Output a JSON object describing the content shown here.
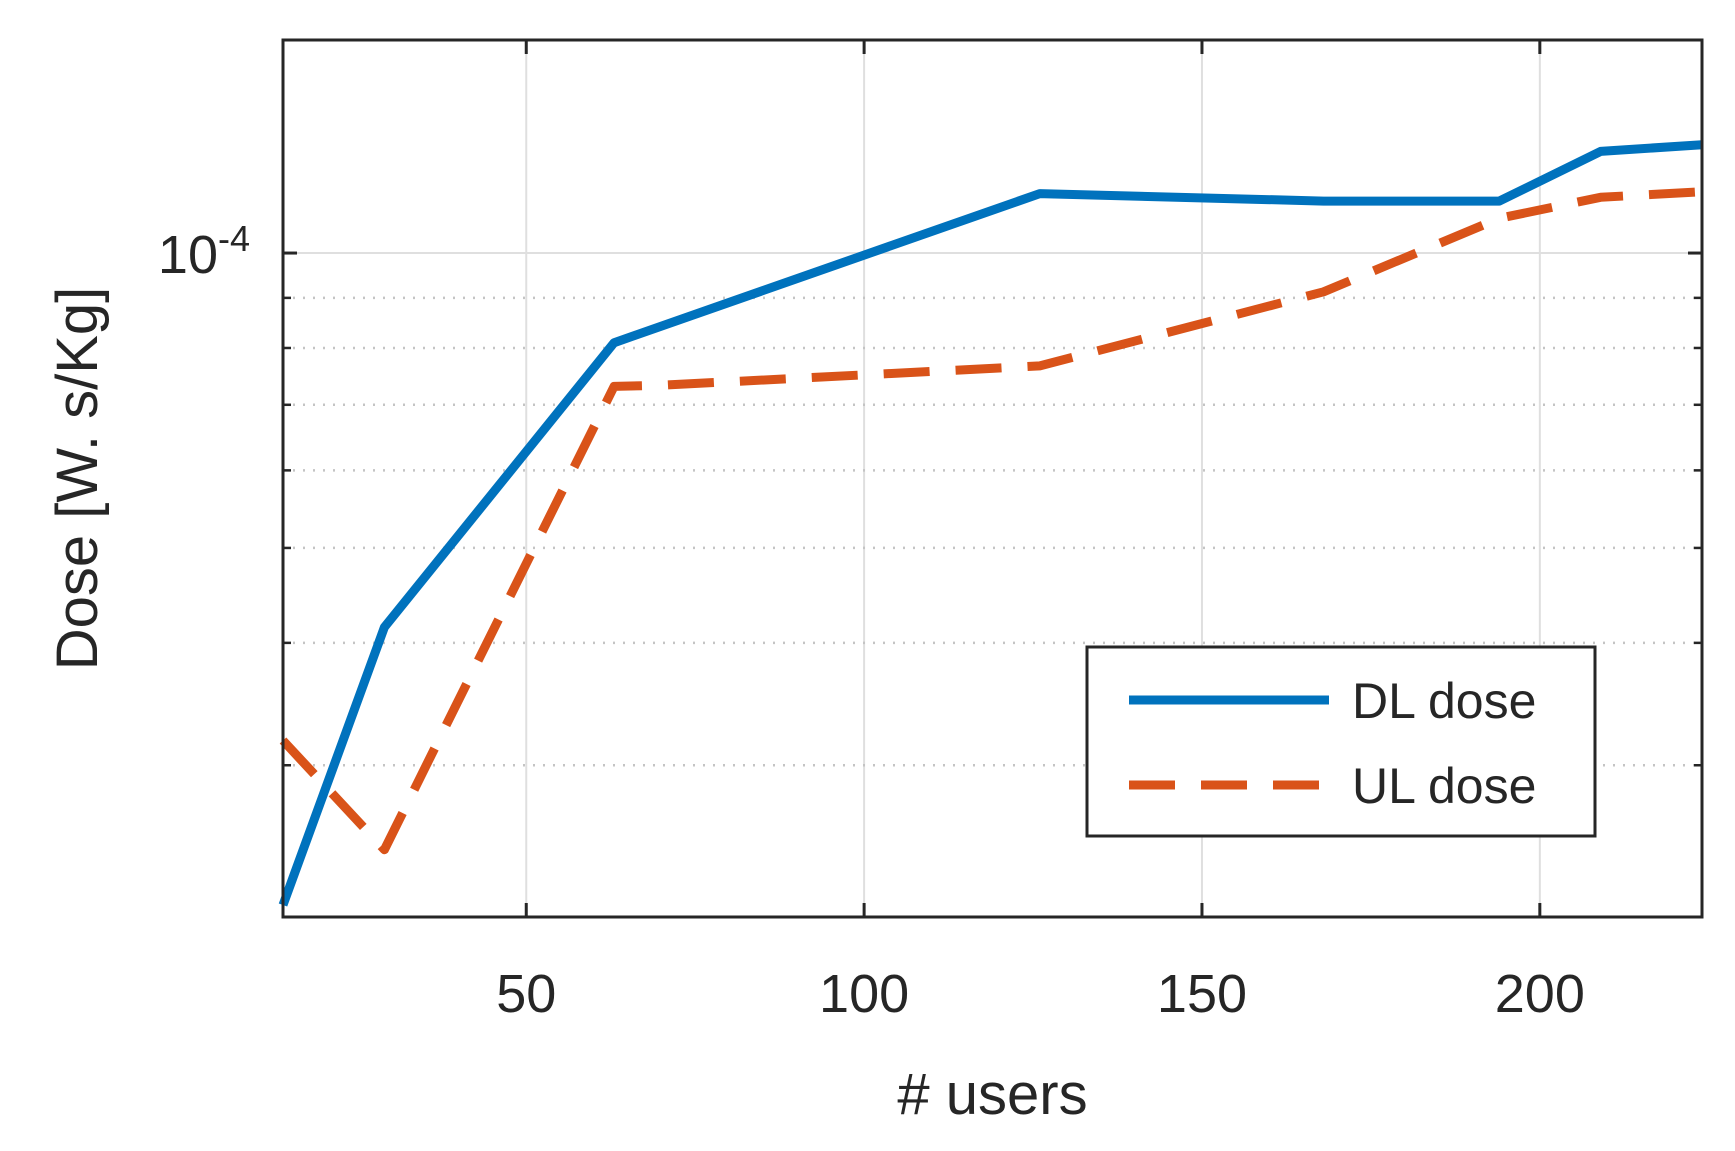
{
  "chart_data": {
    "type": "line",
    "title": "",
    "xlabel": "# users",
    "ylabel": "Dose [W. s/Kg]",
    "xlim": [
      14,
      224
    ],
    "xticks": [
      50,
      100,
      150,
      200
    ],
    "yscale": "log",
    "ylim": [
      2.1e-05,
      0.000165
    ],
    "yticks": [
      0.0001
    ],
    "ytick_labels": [
      {
        "base": "10",
        "exp": "-4"
      }
    ],
    "yminor_ticks": [
      3e-05,
      4e-05,
      5e-05,
      6e-05,
      7e-05,
      8e-05,
      9e-05
    ],
    "grid": {
      "major": true,
      "minor": "dotted"
    },
    "legend": {
      "placement": "bottom-right"
    },
    "series": [
      {
        "name": "DL dose",
        "color": "#0072BD",
        "style": "solid",
        "x": [
          14,
          29,
          63,
          126,
          168,
          194,
          209,
          224
        ],
        "y": [
          2.16e-05,
          4.15e-05,
          8.1e-05,
          0.000115,
          0.000113,
          0.000113,
          0.000127,
          0.000129
        ]
      },
      {
        "name": "UL dose",
        "color": "#D95319",
        "style": "dashed",
        "x": [
          14,
          29,
          63,
          70,
          126,
          168,
          194,
          209,
          224
        ],
        "y": [
          3.18e-05,
          2.46e-05,
          7.31e-05,
          7.33e-05,
          7.67e-05,
          9.13e-05,
          0.0001085,
          0.000114,
          0.0001155
        ]
      }
    ]
  }
}
